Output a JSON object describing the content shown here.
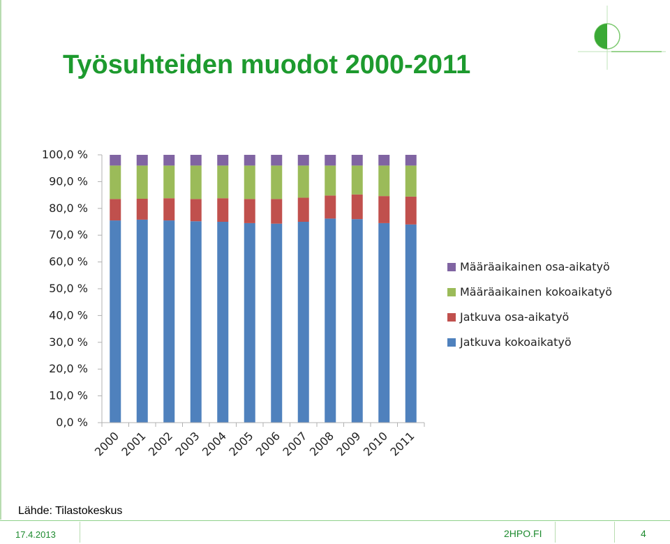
{
  "slide": {
    "title": "Työsuhteiden muodot 2000-2011",
    "source": "Lähde: Tilastokeskus",
    "footer": {
      "date": "17.4.2013",
      "site": "2HPO.FI",
      "page": "4"
    }
  },
  "colors": {
    "title": "#1d9a2e",
    "series": [
      "#4f81bd",
      "#c0504d",
      "#9bbb59",
      "#8064a2"
    ]
  },
  "chart_data": {
    "type": "bar",
    "stacked": true,
    "categories": [
      "2000",
      "2001",
      "2002",
      "2003",
      "2004",
      "2005",
      "2006",
      "2007",
      "2008",
      "2009",
      "2010",
      "2011"
    ],
    "series": [
      {
        "name": "Jatkuva kokoaikatyö",
        "color": "#4f81bd",
        "values": [
          75.5,
          75.8,
          75.5,
          75.2,
          75.0,
          74.5,
          74.3,
          75.0,
          76.2,
          76.0,
          74.5,
          74.0
        ]
      },
      {
        "name": "Jatkuva osa-aikatyö",
        "color": "#c0504d",
        "values": [
          8.0,
          7.8,
          8.3,
          8.3,
          8.8,
          9.0,
          9.2,
          9.0,
          8.6,
          9.2,
          10.1,
          10.4
        ]
      },
      {
        "name": "Määräaikainen kokoaikatyö",
        "color": "#9bbb59",
        "values": [
          12.5,
          12.4,
          12.2,
          12.5,
          12.2,
          12.5,
          12.5,
          12.0,
          11.2,
          10.8,
          11.4,
          11.6
        ]
      },
      {
        "name": "Määräaikainen osa-aikatyö",
        "color": "#8064a2",
        "values": [
          4.0,
          4.0,
          4.0,
          4.0,
          4.0,
          4.0,
          4.0,
          4.0,
          4.0,
          4.0,
          4.0,
          4.0
        ]
      }
    ],
    "ylim": [
      0,
      100
    ],
    "yticks": [
      "0,0 %",
      "10,0 %",
      "20,0 %",
      "30,0 %",
      "40,0 %",
      "50,0 %",
      "60,0 %",
      "70,0 %",
      "80,0 %",
      "90,0 %",
      "100,0 %"
    ],
    "legend": {
      "position": "right",
      "entries": [
        "Määräaikainen osa-aikatyö",
        "Määräaikainen kokoaikatyö",
        "Jatkuva osa-aikatyö",
        "Jatkuva kokoaikatyö"
      ]
    },
    "grid": false,
    "xlabel": "",
    "ylabel": ""
  }
}
